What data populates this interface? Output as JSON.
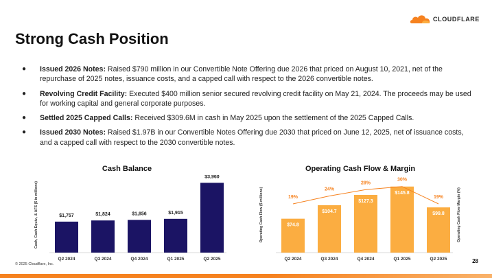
{
  "brand": {
    "name": "CLOUDFLARE",
    "accent": "#f6821f",
    "accent_light": "#fbad41",
    "navy": "#1b1464"
  },
  "title": "Strong Cash Position",
  "bullets": [
    {
      "bold": "Issued 2026 Notes:",
      "text": " Raised $790 million in our Convertible Note Offering due 2026 that priced on August 10, 2021, net of the repurchase of 2025 notes, issuance costs, and a capped call with respect to the 2026 convertible notes."
    },
    {
      "bold": "Revolving Credit Facility:",
      "text": " Executed $400 million senior secured revolving credit facility on May 21, 2024. The proceeds may be used for working capital and general corporate purposes."
    },
    {
      "bold": "Settled 2025 Capped Calls:",
      "text": " Received $309.6M in cash in May 2025 upon the settlement of the 2025 Capped Calls."
    },
    {
      "bold": "Issued 2030 Notes:",
      "text": " Raised $1.97B in our Convertible Notes Offering due 2030 that priced on June 12, 2025, net of issuance costs, and a capped call with respect to the 2030 convertible notes."
    }
  ],
  "chart_data": [
    {
      "type": "bar",
      "title": "Cash Balance",
      "categories": [
        "Q2 2024",
        "Q3 2024",
        "Q4 2024",
        "Q1 2025",
        "Q2 2025"
      ],
      "values": [
        1757,
        1824,
        1856,
        1915,
        3960
      ],
      "labels": [
        "$1,757",
        "$1,824",
        "$1,856",
        "$1,915",
        "$3,960"
      ],
      "ylabel": "Cash, Cash Equiv., & AFS ($ in millions)",
      "xlabel": "",
      "ylim": [
        0,
        4400
      ],
      "color": "#1b1464"
    },
    {
      "type": "bar",
      "title": "Operating Cash Flow & Margin",
      "categories": [
        "Q2 2024",
        "Q3 2024",
        "Q4 2024",
        "Q1 2025",
        "Q2 2025"
      ],
      "values": [
        74.8,
        104.7,
        127.3,
        145.8,
        99.8
      ],
      "labels": [
        "$74.8",
        "$104.7",
        "$127.3",
        "$145.8",
        "$99.8"
      ],
      "ylabel": "Operating Cash Flow ($ millions)",
      "y2label": "Operating Cash Flow Margin (%)",
      "ylim": [
        0,
        200
      ],
      "color": "#fbad41",
      "line": {
        "name": "Operating Cash Flow Margin",
        "values": [
          19,
          24,
          28,
          30,
          19
        ],
        "labels": [
          "19%",
          "24%",
          "28%",
          "30%",
          "19%"
        ],
        "ylim": [
          0,
          40
        ],
        "color": "#f6821f"
      }
    }
  ],
  "footer": {
    "copyright": "© 2025 Cloudflare, Inc.",
    "page_number": "28"
  }
}
